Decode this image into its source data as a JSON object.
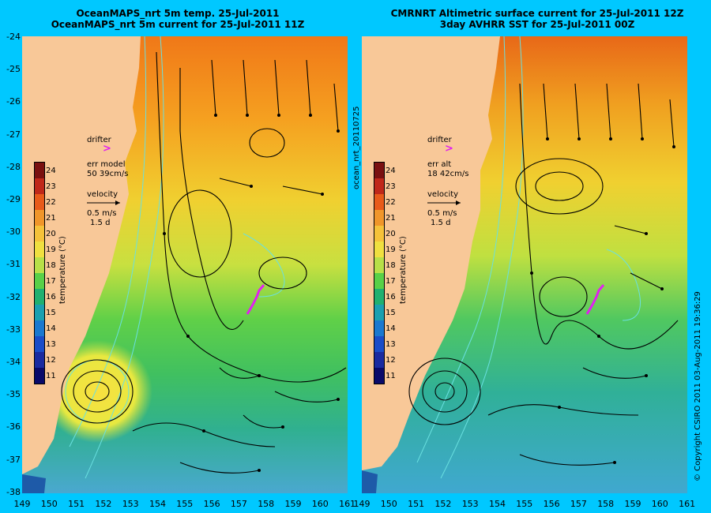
{
  "left_panel": {
    "title_line1": "OceanMAPS_nrt 5m temp. 25-Jul-2011",
    "title_line2": "OceanMAPS_nrt 5m current for 25-Jul-2011 11Z",
    "drifter_label": "drifter",
    "err_line1": "err model",
    "err_line2": "50 39cm/s",
    "velocity_label": "velocity",
    "velocity_scale_1": "0.5 m/s",
    "velocity_scale_2": "1.5 d",
    "colorbar_label": "temperature (°C)"
  },
  "right_panel": {
    "title_line1": "CMRNRT Altimetric surface current for 25-Jul-2011 12Z",
    "title_line2": "3day AVHRR SST for 25-Jul-2011 00Z",
    "drifter_label": "drifter",
    "err_line1": "err alt",
    "err_line2": "18 42cm/s",
    "velocity_label": "velocity",
    "velocity_scale_1": "0.5 m/s",
    "velocity_scale_2": "1.5 d",
    "colorbar_label": "temperature (°C)"
  },
  "latitude_labels": [
    "-24",
    "-25",
    "-26",
    "-27",
    "-28",
    "-29",
    "-30",
    "-31",
    "-32",
    "-33",
    "-34",
    "-35",
    "-36",
    "-37",
    "-38"
  ],
  "longitude_labels_left": [
    "149",
    "150",
    "151",
    "152",
    "153",
    "154",
    "155",
    "156",
    "157",
    "158",
    "159",
    "160",
    "161"
  ],
  "longitude_labels_right": [
    "149",
    "150",
    "151",
    "152",
    "153",
    "154",
    "155",
    "156",
    "157",
    "158",
    "159",
    "160",
    "161"
  ],
  "colorbar_ticks": [
    "24",
    "23",
    "22",
    "21",
    "20",
    "19",
    "18",
    "17",
    "16",
    "15",
    "14",
    "13",
    "12",
    "11"
  ],
  "colorbar_colors": [
    "#7a1010",
    "#c0281a",
    "#e85a1a",
    "#f0962a",
    "#f5c23a",
    "#f0e040",
    "#b8e048",
    "#58d048",
    "#20b070",
    "#1aa0b0",
    "#1a78d0",
    "#1a4cc8",
    "#1a2aa0",
    "#0a0a6a"
  ],
  "middle_vertical_label": "ocean_nrt_20110725",
  "copyright": "© Copyright CSIRO 2011   03-Aug-2011 19:36:29",
  "colors": {
    "background": "#00c8ff",
    "land": "#f8c898",
    "drifter": "#e020f0",
    "contour": "#6ae0e0"
  }
}
